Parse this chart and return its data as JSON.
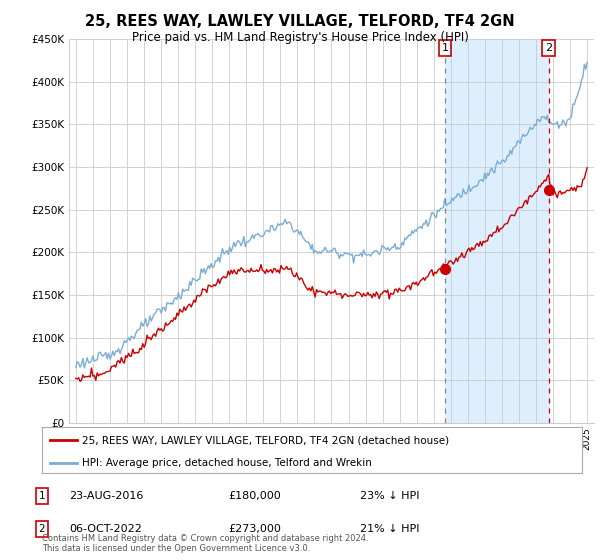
{
  "title": "25, REES WAY, LAWLEY VILLAGE, TELFORD, TF4 2GN",
  "subtitle": "Price paid vs. HM Land Registry's House Price Index (HPI)",
  "ylim": [
    0,
    450000
  ],
  "yticks": [
    0,
    50000,
    100000,
    150000,
    200000,
    250000,
    300000,
    350000,
    400000,
    450000
  ],
  "hpi_color": "#7aadd4",
  "price_color": "#cc0000",
  "marker1_year": 2016.65,
  "marker2_year": 2022.75,
  "marker1_price": 180000,
  "marker2_price": 273000,
  "shade_color": "#ddeeff",
  "legend_line1": "25, REES WAY, LAWLEY VILLAGE, TELFORD, TF4 2GN (detached house)",
  "legend_line2": "HPI: Average price, detached house, Telford and Wrekin",
  "footnote": "Contains HM Land Registry data © Crown copyright and database right 2024.\nThis data is licensed under the Open Government Licence v3.0.",
  "background_color": "#ffffff",
  "grid_color": "#cccccc"
}
